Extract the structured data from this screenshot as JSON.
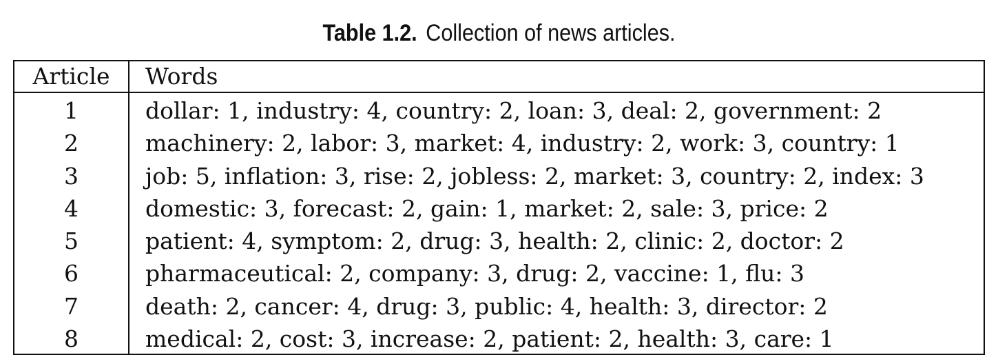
{
  "caption": {
    "label": "Table 1.2.",
    "text": "Collection of news articles."
  },
  "table": {
    "headers": {
      "article": "Article",
      "words": "Words"
    },
    "rows": [
      {
        "article": "1",
        "words": "dollar: 1, industry: 4, country: 2, loan: 3, deal: 2, government: 2"
      },
      {
        "article": "2",
        "words": "machinery: 2, labor: 3, market: 4, industry: 2, work: 3, country: 1"
      },
      {
        "article": "3",
        "words": "job: 5, inflation: 3, rise: 2, jobless: 2, market: 3, country: 2, index: 3"
      },
      {
        "article": "4",
        "words": "domestic: 3, forecast: 2, gain: 1, market: 2, sale: 3, price: 2"
      },
      {
        "article": "5",
        "words": "patient: 4, symptom: 2, drug: 3, health: 2, clinic: 2, doctor: 2"
      },
      {
        "article": "6",
        "words": "pharmaceutical: 2, company: 3, drug: 2, vaccine: 1, flu: 3"
      },
      {
        "article": "7",
        "words": "death: 2, cancer: 4, drug: 3, public: 4, health: 3, director: 2"
      },
      {
        "article": "8",
        "words": "medical: 2, cost: 3, increase: 2, patient: 2, health: 3, care: 1"
      }
    ]
  }
}
